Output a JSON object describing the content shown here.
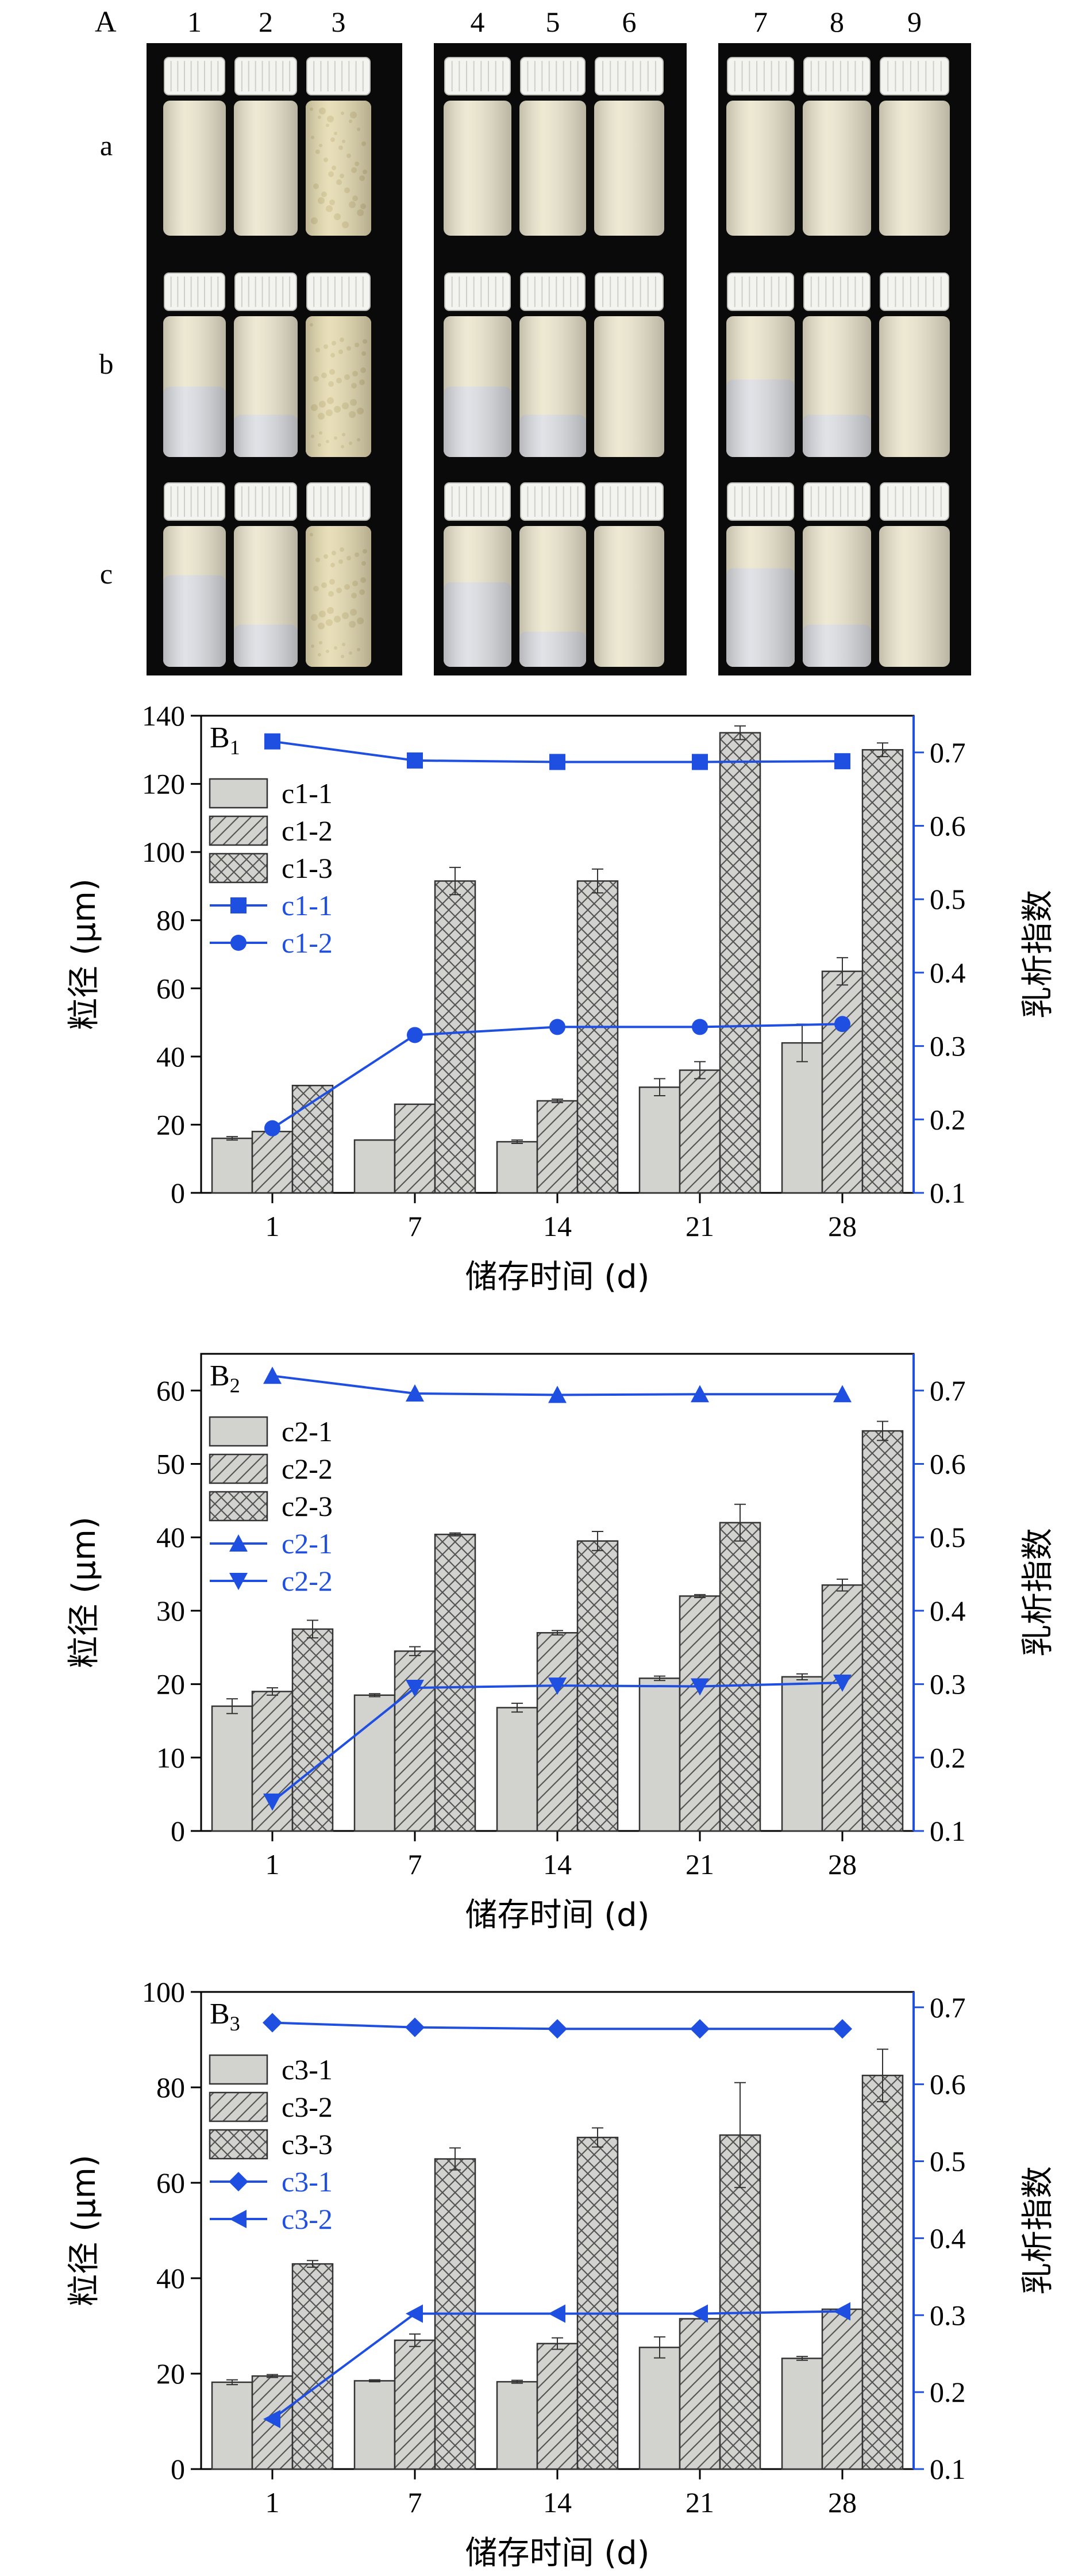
{
  "photo_panel": {
    "panel_label": "A",
    "column_labels": [
      "1",
      "2",
      "3",
      "4",
      "5",
      "6",
      "7",
      "8",
      "9"
    ],
    "row_labels": [
      "a",
      "b",
      "c"
    ],
    "colors": {
      "background": "#0a0a0a",
      "cap": "#f3f3f0",
      "cream_layer": "#ede7cf",
      "white_layer": "#dedfe4",
      "yellow_emulsion": "#e6dcb2"
    },
    "bottles": [
      [
        "uniform-cream",
        "uniform-cream",
        "flocculated-yellow",
        "uniform-cream",
        "uniform-cream",
        "uniform-cream",
        "uniform-cream",
        "uniform-cream",
        "uniform-cream"
      ],
      [
        "creamed-50",
        "creamed-70",
        "flocculated-yellow",
        "creamed-50",
        "creamed-70",
        "uniform-cream",
        "creamed-45",
        "creamed-70",
        "uniform-cream"
      ],
      [
        "creamed-35",
        "creamed-70",
        "flocculated-yellow",
        "creamed-40",
        "creamed-75",
        "uniform-cream",
        "creamed-30",
        "creamed-70",
        "uniform-cream"
      ]
    ]
  },
  "chart_data": [
    {
      "type": "bar",
      "panel_label": "B",
      "panel_sub": "1",
      "xlabel": "储存时间 (d)",
      "ylabel": "粒径 (μm)",
      "y2label": "乳析指数",
      "categories": [
        "1",
        "7",
        "14",
        "21",
        "28"
      ],
      "ylim": [
        0,
        140
      ],
      "yticks": [
        0,
        20,
        40,
        60,
        80,
        100,
        120,
        140
      ],
      "y2lim": [
        0.1,
        0.75
      ],
      "y2ticks": [
        0.1,
        0.2,
        0.3,
        0.4,
        0.5,
        0.6,
        0.7
      ],
      "series": [
        {
          "name": "c1-1",
          "kind": "bar",
          "pattern": "plain",
          "values": [
            16,
            15.5,
            15,
            31,
            44
          ],
          "errors": [
            0.5,
            0,
            0.5,
            2.5,
            5.5
          ]
        },
        {
          "name": "c1-2",
          "kind": "bar",
          "pattern": "hatch",
          "values": [
            18,
            26,
            27,
            36,
            65
          ],
          "errors": [
            0.5,
            0,
            0.5,
            2.5,
            4
          ]
        },
        {
          "name": "c1-3",
          "kind": "bar",
          "pattern": "cross",
          "values": [
            31.5,
            91.5,
            91.5,
            135,
            130
          ],
          "errors": [
            0,
            4,
            3.5,
            2,
            2
          ]
        },
        {
          "name": "c1-1",
          "kind": "line",
          "marker": "square",
          "values": [
            0.715,
            0.689,
            0.687,
            0.687,
            0.688
          ]
        },
        {
          "name": "c1-2",
          "kind": "line",
          "marker": "circle",
          "values": [
            0.188,
            0.315,
            0.326,
            0.326,
            0.33
          ]
        }
      ],
      "colors": {
        "bar_fill": "#d2d2cf",
        "line": "#1f4fe0",
        "axis_right": "#1f4fe0"
      }
    },
    {
      "type": "bar",
      "panel_label": "B",
      "panel_sub": "2",
      "xlabel": "储存时间 (d)",
      "ylabel": "粒径 (μm)",
      "y2label": "乳析指数",
      "categories": [
        "1",
        "7",
        "14",
        "21",
        "28"
      ],
      "ylim": [
        0,
        65
      ],
      "yticks": [
        0,
        10,
        20,
        30,
        40,
        50,
        60
      ],
      "y2lim": [
        0.1,
        0.75
      ],
      "y2ticks": [
        0.1,
        0.2,
        0.3,
        0.4,
        0.5,
        0.6,
        0.7
      ],
      "series": [
        {
          "name": "c2-1",
          "kind": "bar",
          "pattern": "plain",
          "values": [
            17,
            18.5,
            16.8,
            20.8,
            21
          ],
          "errors": [
            1,
            0.2,
            0.6,
            0.3,
            0.4
          ]
        },
        {
          "name": "c2-2",
          "kind": "bar",
          "pattern": "hatch",
          "values": [
            19,
            24.5,
            27,
            32,
            33.5
          ],
          "errors": [
            0.5,
            0.6,
            0.3,
            0.2,
            0.8
          ]
        },
        {
          "name": "c2-3",
          "kind": "bar",
          "pattern": "cross",
          "values": [
            27.5,
            40.4,
            39.5,
            42,
            54.5
          ],
          "errors": [
            1.2,
            0.2,
            1.3,
            2.5,
            1.3
          ]
        },
        {
          "name": "c2-1",
          "kind": "line",
          "marker": "triangle-up",
          "values": [
            0.72,
            0.696,
            0.694,
            0.695,
            0.695
          ]
        },
        {
          "name": "c2-2",
          "kind": "line",
          "marker": "triangle-down",
          "values": [
            0.14,
            0.295,
            0.298,
            0.297,
            0.302
          ]
        }
      ],
      "colors": {
        "bar_fill": "#d2d2cf",
        "line": "#1f4fe0",
        "axis_right": "#1f4fe0"
      }
    },
    {
      "type": "bar",
      "panel_label": "B",
      "panel_sub": "3",
      "xlabel": "储存时间 (d)",
      "ylabel": "粒径 (μm)",
      "y2label": "乳析指数",
      "categories": [
        "1",
        "7",
        "14",
        "21",
        "28"
      ],
      "ylim": [
        0,
        100
      ],
      "yticks": [
        0,
        20,
        40,
        60,
        80,
        100
      ],
      "y2lim": [
        0.1,
        0.72
      ],
      "y2ticks": [
        0.1,
        0.2,
        0.3,
        0.4,
        0.5,
        0.6,
        0.7
      ],
      "series": [
        {
          "name": "c3-1",
          "kind": "bar",
          "pattern": "plain",
          "values": [
            18.2,
            18.5,
            18.3,
            25.5,
            23.2
          ],
          "errors": [
            0.5,
            0.2,
            0.3,
            2.2,
            0.4
          ]
        },
        {
          "name": "c3-2",
          "kind": "bar",
          "pattern": "hatch",
          "values": [
            19.5,
            27,
            26.3,
            31.5,
            33.5
          ],
          "errors": [
            0.3,
            1.3,
            1.2,
            0,
            0
          ]
        },
        {
          "name": "c3-3",
          "kind": "bar",
          "pattern": "cross",
          "values": [
            43,
            65,
            69.5,
            70,
            82.5
          ],
          "errors": [
            0.7,
            2.3,
            2,
            11,
            5.5
          ]
        },
        {
          "name": "c3-1",
          "kind": "line",
          "marker": "diamond",
          "values": [
            0.68,
            0.674,
            0.672,
            0.672,
            0.672
          ]
        },
        {
          "name": "c3-2",
          "kind": "line",
          "marker": "triangle-left",
          "values": [
            0.165,
            0.302,
            0.302,
            0.302,
            0.305
          ]
        }
      ],
      "colors": {
        "bar_fill": "#d2d2cf",
        "line": "#1f4fe0",
        "axis_right": "#1f4fe0"
      }
    }
  ]
}
